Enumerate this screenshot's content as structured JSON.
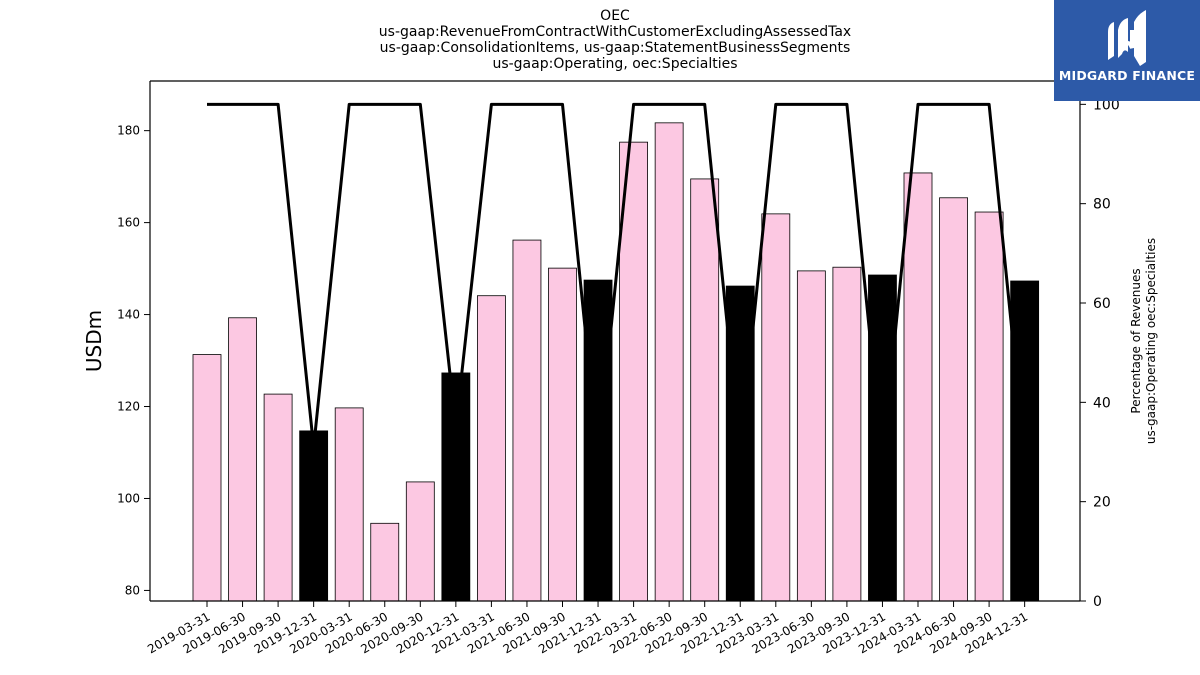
{
  "chart_data": {
    "type": "bar",
    "title_lines": [
      "OEC",
      "us-gaap:RevenueFromContractWithCustomerExcludingAssessedTax",
      "us-gaap:ConsolidationItems, us-gaap:StatementBusinessSegments",
      "us-gaap:Operating, oec:Specialties"
    ],
    "ylabel": "USDm",
    "y2label_lines": [
      "Percentage of Revenues",
      "us-gaap:Operating oec:Specialties"
    ],
    "categories": [
      "2019-03-31",
      "2019-06-30",
      "2019-09-30",
      "2019-12-31",
      "2020-03-31",
      "2020-06-30",
      "2020-09-30",
      "2020-12-31",
      "2021-03-31",
      "2021-06-30",
      "2021-09-30",
      "2021-12-31",
      "2022-03-31",
      "2022-06-30",
      "2022-09-30",
      "2022-12-31",
      "2023-03-31",
      "2023-06-30",
      "2023-09-30",
      "2023-12-31",
      "2024-03-31",
      "2024-06-30",
      "2024-09-30",
      "2024-12-31"
    ],
    "values": [
      131.3,
      139.3,
      122.7,
      114.7,
      119.7,
      94.6,
      103.6,
      127.3,
      144.1,
      156.2,
      150.1,
      147.5,
      177.5,
      181.7,
      169.5,
      146.2,
      161.9,
      149.5,
      150.3,
      148.6,
      170.8,
      165.4,
      162.3,
      147.3
    ],
    "highlight_quarters": [
      "2019-12-31",
      "2020-12-31",
      "2021-12-31",
      "2022-12-31",
      "2023-12-31",
      "2024-12-31"
    ],
    "line_series": {
      "values": [
        100,
        100,
        100,
        31,
        100,
        100,
        100,
        35,
        100,
        100,
        100,
        29,
        100,
        100,
        100,
        30,
        100,
        100,
        100,
        28,
        100,
        100,
        100,
        29
      ]
    },
    "ylim": [
      77.7,
      190.8
    ],
    "y_ticks": [
      80,
      100,
      120,
      140,
      160,
      180
    ],
    "y2lim": [
      0,
      104.7
    ],
    "y2_ticks": [
      0,
      20,
      40,
      60,
      80,
      100
    ],
    "colors": {
      "bar": "#fcc8e2",
      "bar_highlight": "#000000",
      "bar_edge": "#000000",
      "line": "#000000"
    },
    "grid": false,
    "legend": "none"
  },
  "logo": {
    "text": "MIDGARD FINANCE",
    "color": "#2d5aa8"
  }
}
